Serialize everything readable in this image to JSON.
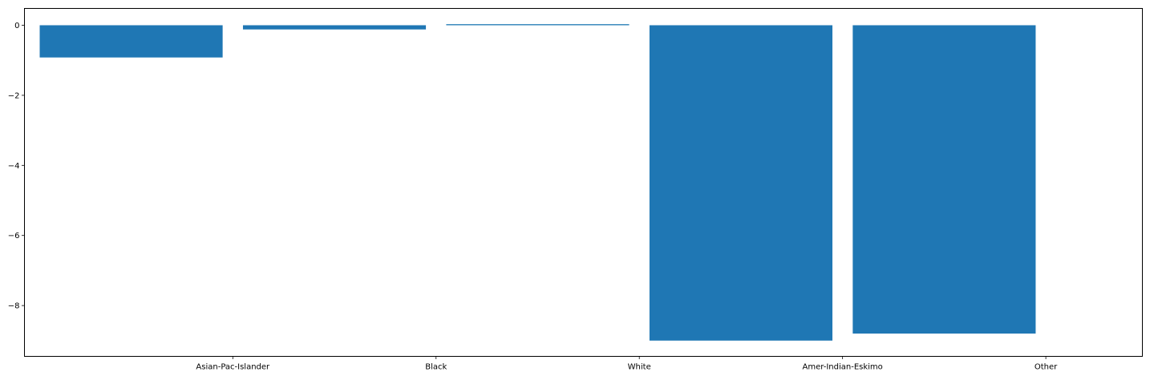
{
  "chart_data": {
    "type": "bar",
    "categories": [
      "Asian-Pac-Islander",
      "Black",
      "White",
      "Amer-Indian-Eskimo",
      "Other"
    ],
    "values": [
      -0.92,
      -0.12,
      0.03,
      -9.0,
      -8.8
    ],
    "title": "",
    "xlabel": "",
    "ylabel": "",
    "ylim": [
      -9.45,
      0.48
    ],
    "yticks": [
      0,
      -2,
      -4,
      -6,
      -8
    ],
    "ytick_labels": [
      "0",
      "−2",
      "−4",
      "−6",
      "−8"
    ],
    "grid": false,
    "bar_color": "#1f77b4"
  }
}
